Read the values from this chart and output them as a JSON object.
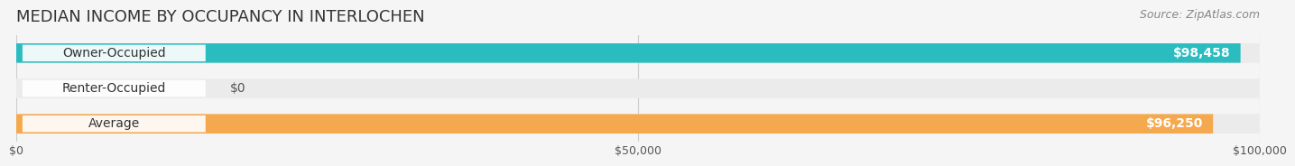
{
  "title": "MEDIAN INCOME BY OCCUPANCY IN INTERLOCHEN",
  "source": "Source: ZipAtlas.com",
  "categories": [
    "Owner-Occupied",
    "Renter-Occupied",
    "Average"
  ],
  "values": [
    98458,
    0,
    96250
  ],
  "bar_colors": [
    "#2bbcbf",
    "#b09ec4",
    "#f5a94e"
  ],
  "bar_labels": [
    "$98,458",
    "$0",
    "$96,250"
  ],
  "xlim": [
    0,
    100000
  ],
  "xticks": [
    0,
    50000,
    100000
  ],
  "xtick_labels": [
    "$0",
    "$50,000",
    "$100,000"
  ],
  "background_color": "#f5f5f5",
  "bar_bg_color": "#ebebeb",
  "title_fontsize": 13,
  "source_fontsize": 9,
  "label_fontsize": 10
}
